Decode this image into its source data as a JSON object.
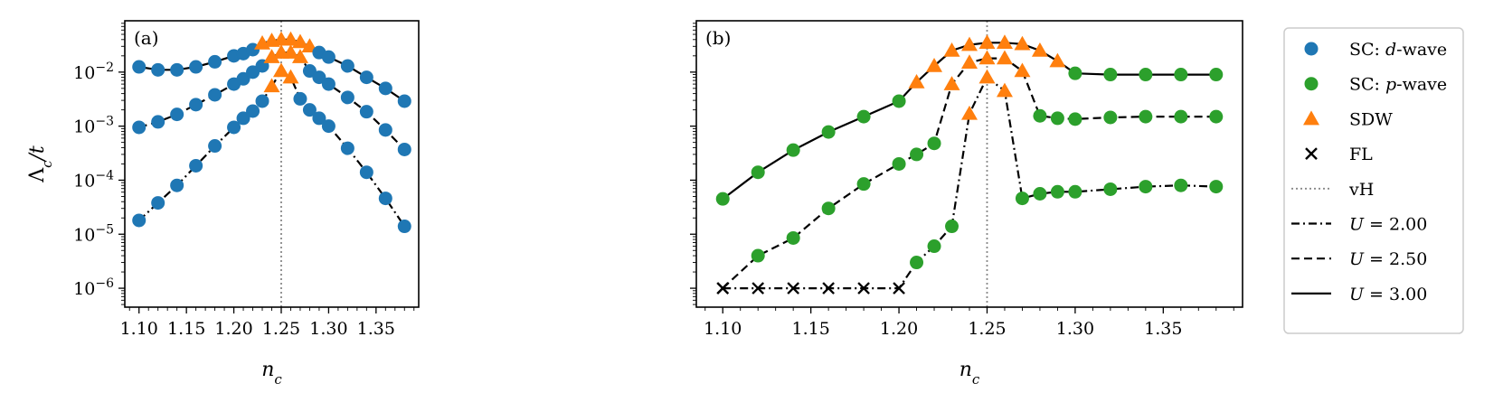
{
  "chart_data": [
    {
      "type": "line",
      "panel_label": "(a)",
      "xlabel": "n_c",
      "ylabel": "Λ_c/t",
      "xlim": [
        1.085,
        1.395
      ],
      "ylim_log10": [
        -6.35,
        -1.05
      ],
      "yscale": "log",
      "xticks": [
        1.1,
        1.15,
        1.2,
        1.25,
        1.3,
        1.35
      ],
      "xtick_labels": [
        "1.10",
        "1.15",
        "1.20",
        "1.25",
        "1.30",
        "1.35"
      ],
      "yticks_log10": [
        -6,
        -5,
        -4,
        -3,
        -2
      ],
      "ytick_labels": [
        "10",
        "10",
        "10",
        "10",
        "10"
      ],
      "ytick_exponents": [
        "−6",
        "−5",
        "−4",
        "−3",
        "−2"
      ],
      "vline_x": 1.25,
      "series": [
        {
          "name": "U = 2.00",
          "style": "dashdot",
          "points": [
            {
              "x": 1.1,
              "y": 1.8e-05,
              "phase": "d"
            },
            {
              "x": 1.12,
              "y": 3.8e-05,
              "phase": "d"
            },
            {
              "x": 1.14,
              "y": 8e-05,
              "phase": "d"
            },
            {
              "x": 1.16,
              "y": 0.000185,
              "phase": "d"
            },
            {
              "x": 1.18,
              "y": 0.00043,
              "phase": "d"
            },
            {
              "x": 1.2,
              "y": 0.00095,
              "phase": "d"
            },
            {
              "x": 1.21,
              "y": 0.0014,
              "phase": "d"
            },
            {
              "x": 1.22,
              "y": 0.0019,
              "phase": "d"
            },
            {
              "x": 1.23,
              "y": 0.0029,
              "phase": "d"
            },
            {
              "x": 1.24,
              "y": 0.0055,
              "phase": "SDW"
            },
            {
              "x": 1.25,
              "y": 0.0105,
              "phase": "SDW"
            },
            {
              "x": 1.26,
              "y": 0.008,
              "phase": "SDW"
            },
            {
              "x": 1.27,
              "y": 0.0032,
              "phase": "d"
            },
            {
              "x": 1.28,
              "y": 0.002,
              "phase": "d"
            },
            {
              "x": 1.29,
              "y": 0.0014,
              "phase": "d"
            },
            {
              "x": 1.3,
              "y": 0.001,
              "phase": "d"
            },
            {
              "x": 1.32,
              "y": 0.00039,
              "phase": "d"
            },
            {
              "x": 1.34,
              "y": 0.00014,
              "phase": "d"
            },
            {
              "x": 1.36,
              "y": 4.6e-05,
              "phase": "d"
            },
            {
              "x": 1.38,
              "y": 1.4e-05,
              "phase": "d"
            }
          ]
        },
        {
          "name": "U = 2.50",
          "style": "dashed",
          "points": [
            {
              "x": 1.1,
              "y": 0.00095,
              "phase": "d"
            },
            {
              "x": 1.12,
              "y": 0.0012,
              "phase": "d"
            },
            {
              "x": 1.14,
              "y": 0.00165,
              "phase": "d"
            },
            {
              "x": 1.16,
              "y": 0.0025,
              "phase": "d"
            },
            {
              "x": 1.18,
              "y": 0.0038,
              "phase": "d"
            },
            {
              "x": 1.2,
              "y": 0.006,
              "phase": "d"
            },
            {
              "x": 1.21,
              "y": 0.0075,
              "phase": "d"
            },
            {
              "x": 1.22,
              "y": 0.01,
              "phase": "d"
            },
            {
              "x": 1.23,
              "y": 0.013,
              "phase": "d"
            },
            {
              "x": 1.24,
              "y": 0.019,
              "phase": "SDW"
            },
            {
              "x": 1.25,
              "y": 0.023,
              "phase": "SDW"
            },
            {
              "x": 1.26,
              "y": 0.023,
              "phase": "SDW"
            },
            {
              "x": 1.27,
              "y": 0.019,
              "phase": "SDW"
            },
            {
              "x": 1.28,
              "y": 0.0105,
              "phase": "d"
            },
            {
              "x": 1.29,
              "y": 0.008,
              "phase": "d"
            },
            {
              "x": 1.3,
              "y": 0.006,
              "phase": "d"
            },
            {
              "x": 1.32,
              "y": 0.0034,
              "phase": "d"
            },
            {
              "x": 1.34,
              "y": 0.00185,
              "phase": "d"
            },
            {
              "x": 1.36,
              "y": 0.00085,
              "phase": "d"
            },
            {
              "x": 1.38,
              "y": 0.00037,
              "phase": "d"
            }
          ]
        },
        {
          "name": "U = 3.00",
          "style": "solid",
          "points": [
            {
              "x": 1.1,
              "y": 0.0125,
              "phase": "d"
            },
            {
              "x": 1.12,
              "y": 0.011,
              "phase": "d"
            },
            {
              "x": 1.14,
              "y": 0.011,
              "phase": "d"
            },
            {
              "x": 1.16,
              "y": 0.0125,
              "phase": "d"
            },
            {
              "x": 1.18,
              "y": 0.0155,
              "phase": "d"
            },
            {
              "x": 1.2,
              "y": 0.02,
              "phase": "d"
            },
            {
              "x": 1.21,
              "y": 0.022,
              "phase": "d"
            },
            {
              "x": 1.22,
              "y": 0.026,
              "phase": "d"
            },
            {
              "x": 1.23,
              "y": 0.034,
              "phase": "SDW"
            },
            {
              "x": 1.24,
              "y": 0.038,
              "phase": "SDW"
            },
            {
              "x": 1.25,
              "y": 0.04,
              "phase": "SDW"
            },
            {
              "x": 1.26,
              "y": 0.04,
              "phase": "SDW"
            },
            {
              "x": 1.27,
              "y": 0.036,
              "phase": "SDW"
            },
            {
              "x": 1.28,
              "y": 0.03,
              "phase": "SDW"
            },
            {
              "x": 1.29,
              "y": 0.023,
              "phase": "d"
            },
            {
              "x": 1.3,
              "y": 0.019,
              "phase": "d"
            },
            {
              "x": 1.32,
              "y": 0.013,
              "phase": "d"
            },
            {
              "x": 1.34,
              "y": 0.008,
              "phase": "d"
            },
            {
              "x": 1.36,
              "y": 0.005,
              "phase": "d"
            },
            {
              "x": 1.38,
              "y": 0.0029,
              "phase": "d"
            }
          ]
        }
      ]
    },
    {
      "type": "line",
      "panel_label": "(b)",
      "xlabel": "n_c",
      "xlim": [
        1.085,
        1.395
      ],
      "ylim_log10": [
        -6.35,
        -1.05
      ],
      "yscale": "log",
      "xticks": [
        1.1,
        1.15,
        1.2,
        1.25,
        1.3,
        1.35
      ],
      "xtick_labels": [
        "1.10",
        "1.15",
        "1.20",
        "1.25",
        "1.30",
        "1.35"
      ],
      "vline_x": 1.25,
      "series": [
        {
          "name": "U = 2.00",
          "style": "dashdot",
          "points": [
            {
              "x": 1.1,
              "y": 1e-06,
              "phase": "FL"
            },
            {
              "x": 1.12,
              "y": 1e-06,
              "phase": "FL"
            },
            {
              "x": 1.14,
              "y": 1e-06,
              "phase": "FL"
            },
            {
              "x": 1.16,
              "y": 1e-06,
              "phase": "FL"
            },
            {
              "x": 1.18,
              "y": 1e-06,
              "phase": "FL"
            },
            {
              "x": 1.2,
              "y": 1e-06,
              "phase": "FL"
            },
            {
              "x": 1.21,
              "y": 3e-06,
              "phase": "p"
            },
            {
              "x": 1.22,
              "y": 6e-06,
              "phase": "p"
            },
            {
              "x": 1.23,
              "y": 1.4e-05,
              "phase": "p"
            },
            {
              "x": 1.24,
              "y": 0.0017,
              "phase": "SDW"
            },
            {
              "x": 1.25,
              "y": 0.008,
              "phase": "SDW"
            },
            {
              "x": 1.26,
              "y": 0.0045,
              "phase": "SDW"
            },
            {
              "x": 1.27,
              "y": 4.6e-05,
              "phase": "p"
            },
            {
              "x": 1.28,
              "y": 5.6e-05,
              "phase": "p"
            },
            {
              "x": 1.29,
              "y": 6.1e-05,
              "phase": "p"
            },
            {
              "x": 1.3,
              "y": 6.1e-05,
              "phase": "p"
            },
            {
              "x": 1.32,
              "y": 6.8e-05,
              "phase": "p"
            },
            {
              "x": 1.34,
              "y": 7.6e-05,
              "phase": "p"
            },
            {
              "x": 1.36,
              "y": 8e-05,
              "phase": "p"
            },
            {
              "x": 1.38,
              "y": 7.6e-05,
              "phase": "p"
            }
          ]
        },
        {
          "name": "U = 2.50",
          "style": "dashed",
          "points": [
            {
              "x": 1.1,
              "y": 1e-06,
              "phase": "FL"
            },
            {
              "x": 1.12,
              "y": 4e-06,
              "phase": "p"
            },
            {
              "x": 1.14,
              "y": 8.5e-06,
              "phase": "p"
            },
            {
              "x": 1.16,
              "y": 3e-05,
              "phase": "p"
            },
            {
              "x": 1.18,
              "y": 8.5e-05,
              "phase": "p"
            },
            {
              "x": 1.2,
              "y": 0.0002,
              "phase": "p"
            },
            {
              "x": 1.21,
              "y": 0.0003,
              "phase": "p"
            },
            {
              "x": 1.22,
              "y": 0.00048,
              "phase": "p"
            },
            {
              "x": 1.23,
              "y": 0.006,
              "phase": "SDW"
            },
            {
              "x": 1.24,
              "y": 0.015,
              "phase": "SDW"
            },
            {
              "x": 1.25,
              "y": 0.018,
              "phase": "SDW"
            },
            {
              "x": 1.26,
              "y": 0.018,
              "phase": "SDW"
            },
            {
              "x": 1.27,
              "y": 0.0105,
              "phase": "SDW"
            },
            {
              "x": 1.28,
              "y": 0.00155,
              "phase": "p"
            },
            {
              "x": 1.29,
              "y": 0.0014,
              "phase": "p"
            },
            {
              "x": 1.3,
              "y": 0.00135,
              "phase": "p"
            },
            {
              "x": 1.32,
              "y": 0.00145,
              "phase": "p"
            },
            {
              "x": 1.34,
              "y": 0.0015,
              "phase": "p"
            },
            {
              "x": 1.36,
              "y": 0.0015,
              "phase": "p"
            },
            {
              "x": 1.38,
              "y": 0.0015,
              "phase": "p"
            }
          ]
        },
        {
          "name": "U = 3.00",
          "style": "solid",
          "points": [
            {
              "x": 1.1,
              "y": 4.5e-05,
              "phase": "p"
            },
            {
              "x": 1.12,
              "y": 0.00014,
              "phase": "p"
            },
            {
              "x": 1.14,
              "y": 0.00036,
              "phase": "p"
            },
            {
              "x": 1.16,
              "y": 0.00078,
              "phase": "p"
            },
            {
              "x": 1.18,
              "y": 0.0015,
              "phase": "p"
            },
            {
              "x": 1.2,
              "y": 0.0029,
              "phase": "p"
            },
            {
              "x": 1.21,
              "y": 0.0065,
              "phase": "SDW"
            },
            {
              "x": 1.22,
              "y": 0.013,
              "phase": "SDW"
            },
            {
              "x": 1.23,
              "y": 0.025,
              "phase": "SDW"
            },
            {
              "x": 1.24,
              "y": 0.032,
              "phase": "SDW"
            },
            {
              "x": 1.25,
              "y": 0.035,
              "phase": "SDW"
            },
            {
              "x": 1.26,
              "y": 0.035,
              "phase": "SDW"
            },
            {
              "x": 1.27,
              "y": 0.033,
              "phase": "SDW"
            },
            {
              "x": 1.28,
              "y": 0.025,
              "phase": "SDW"
            },
            {
              "x": 1.29,
              "y": 0.016,
              "phase": "SDW"
            },
            {
              "x": 1.3,
              "y": 0.0095,
              "phase": "p"
            },
            {
              "x": 1.32,
              "y": 0.009,
              "phase": "p"
            },
            {
              "x": 1.34,
              "y": 0.009,
              "phase": "p"
            },
            {
              "x": 1.36,
              "y": 0.009,
              "phase": "p"
            },
            {
              "x": 1.38,
              "y": 0.009,
              "phase": "p"
            }
          ]
        }
      ]
    }
  ],
  "legend": {
    "placement": "right",
    "entries": [
      {
        "kind": "marker-circle",
        "color": "#1f77b4",
        "prefix": "SC: ",
        "italic": "d",
        "suffix": "-wave"
      },
      {
        "kind": "marker-circle",
        "color": "#2ca02c",
        "prefix": "SC: ",
        "italic": "p",
        "suffix": "-wave"
      },
      {
        "kind": "marker-triangle",
        "color": "#ff7f0e",
        "prefix": "SDW",
        "italic": "",
        "suffix": ""
      },
      {
        "kind": "marker-x",
        "color": "#000000",
        "prefix": "FL",
        "italic": "",
        "suffix": ""
      },
      {
        "kind": "line-dotted",
        "color": "#888888",
        "prefix": "vH",
        "italic": "",
        "suffix": ""
      },
      {
        "kind": "line-dashdot",
        "color": "#000000",
        "prefix": "",
        "italic": "U",
        "suffix": " = 2.00"
      },
      {
        "kind": "line-dashed",
        "color": "#000000",
        "prefix": "",
        "italic": "U",
        "suffix": " = 2.50"
      },
      {
        "kind": "line-solid",
        "color": "#000000",
        "prefix": "",
        "italic": "U",
        "suffix": " = 3.00"
      }
    ]
  },
  "colors": {
    "d_wave": "#1f77b4",
    "p_wave": "#2ca02c",
    "sdw": "#ff7f0e",
    "fl": "#000000",
    "vh": "#888888",
    "line": "#000000"
  }
}
